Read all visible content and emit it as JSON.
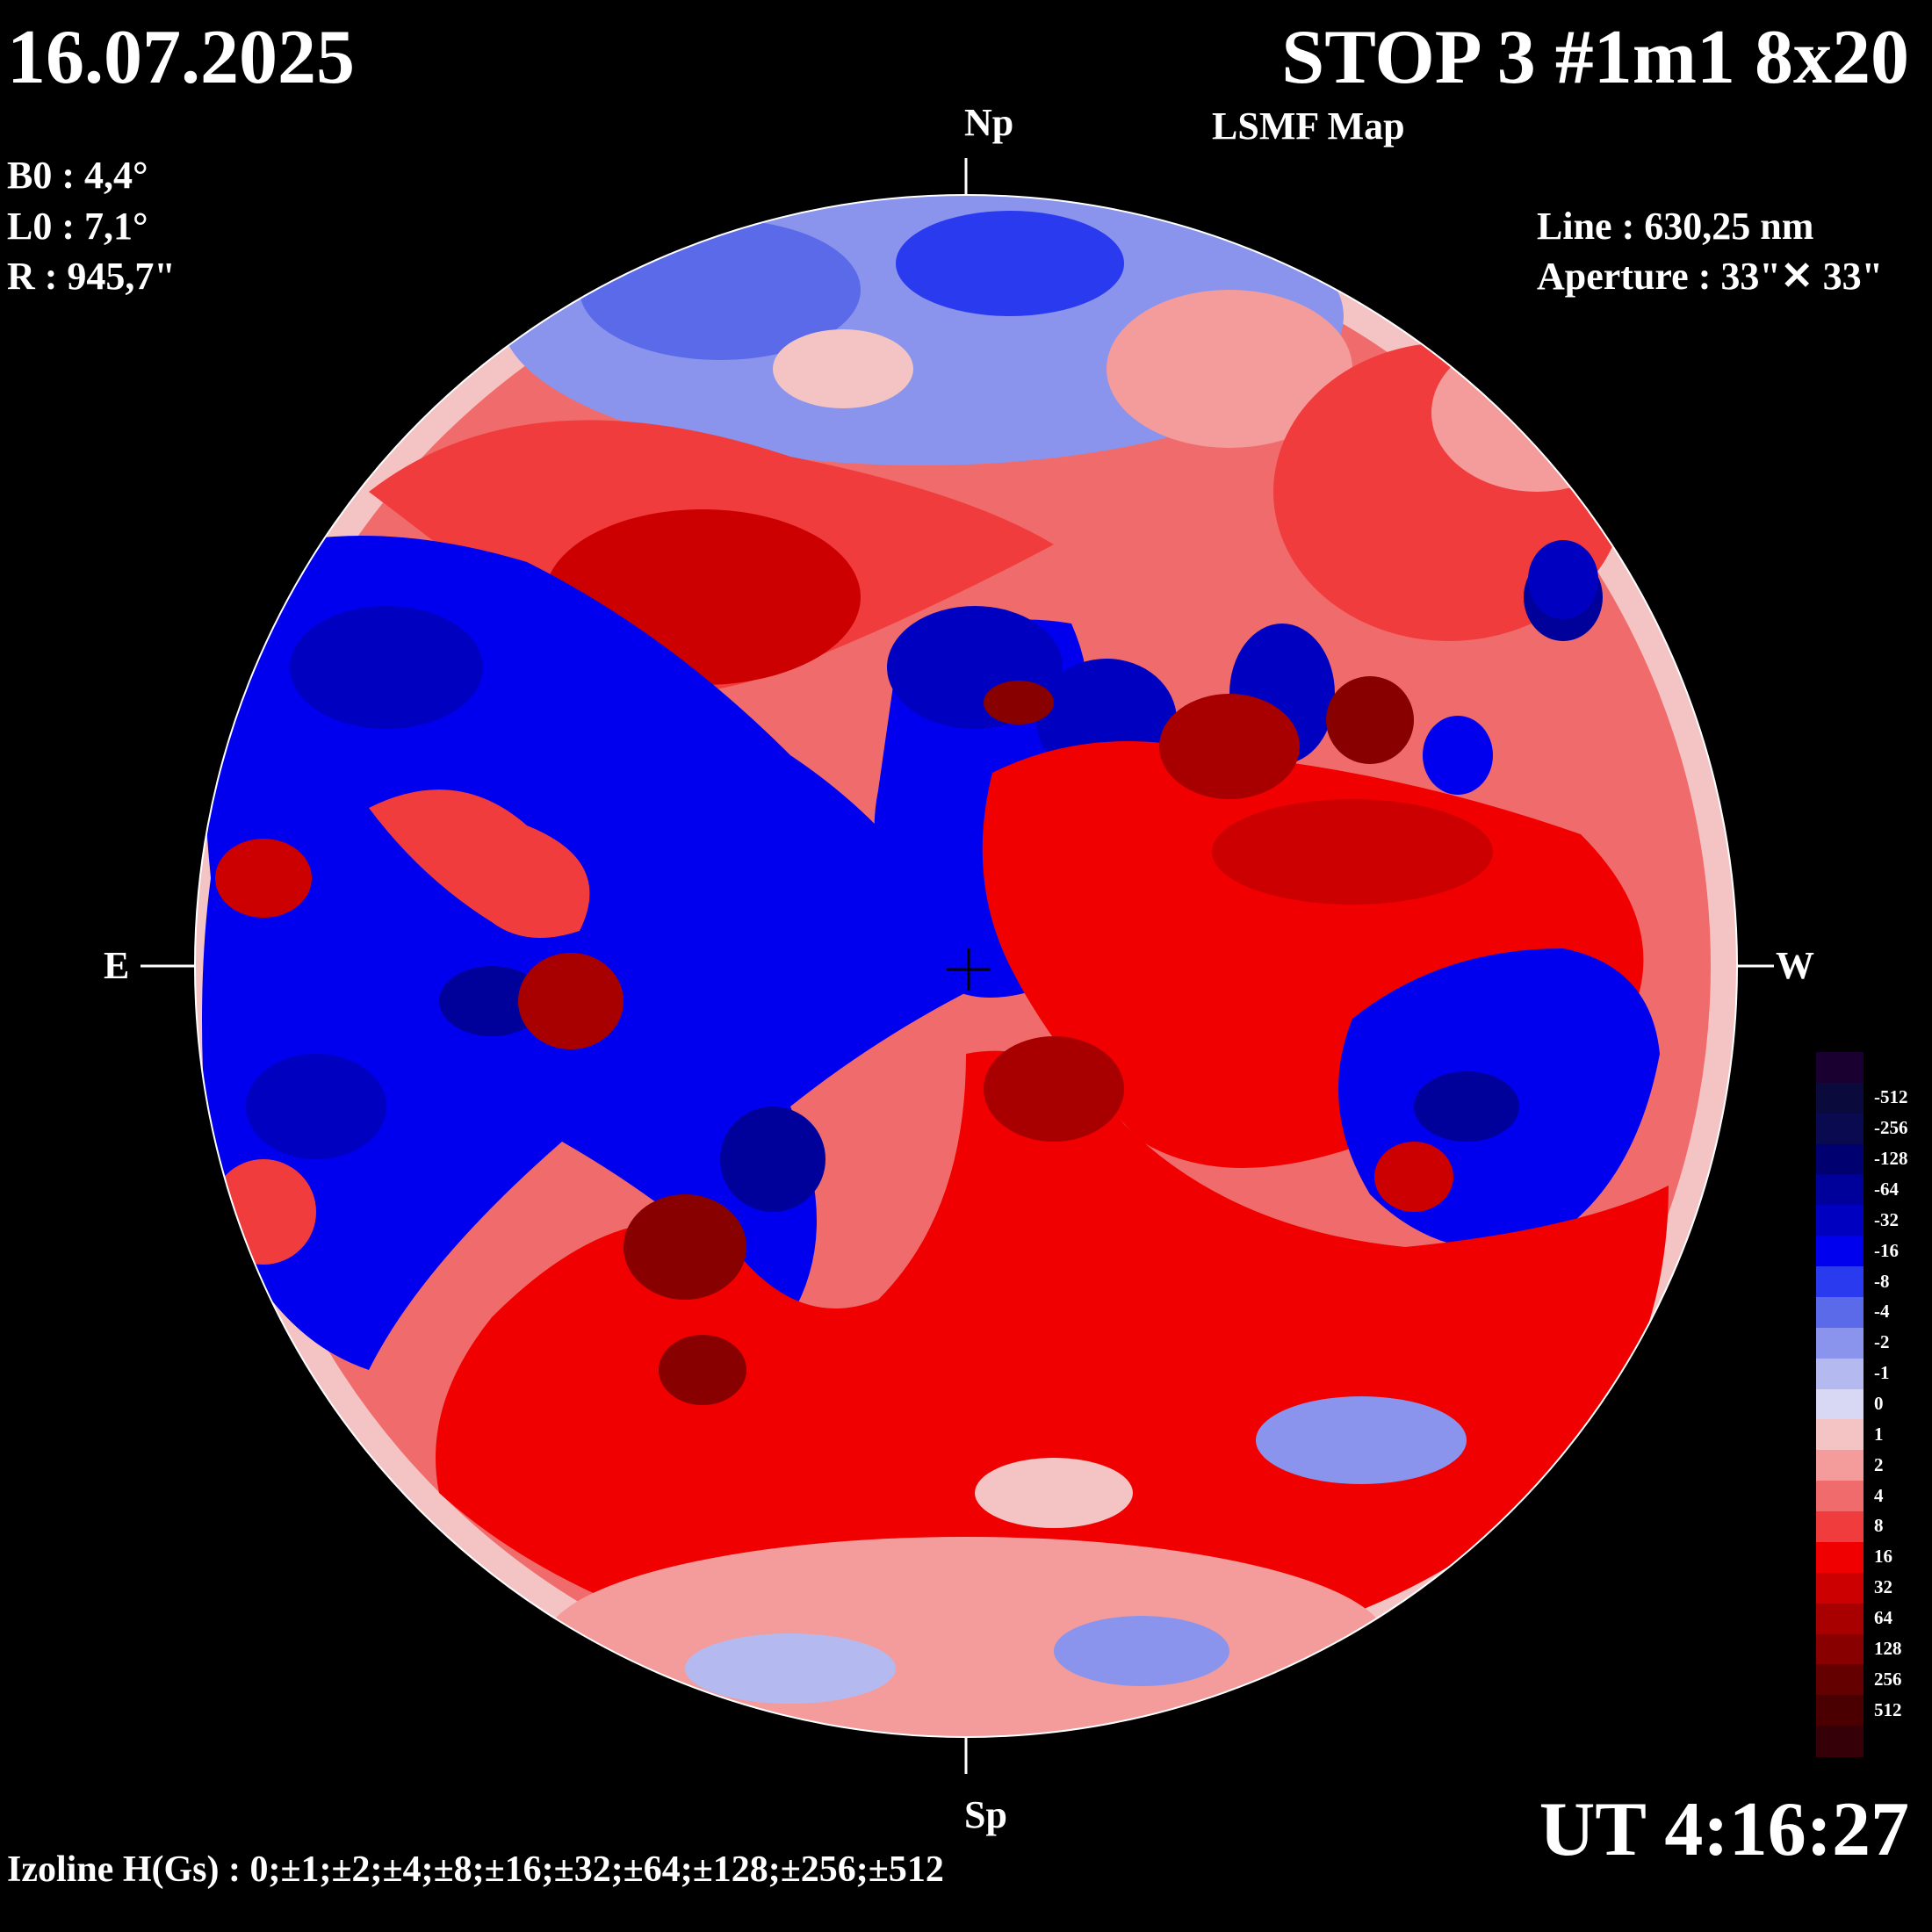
{
  "header": {
    "date": "16.07.2025",
    "title": "STOP 3 #1m1 8x20",
    "subtitle": "LSMF  Map"
  },
  "params": {
    "b0": "B0 : 4,4°",
    "l0": "L0 : 7,1°",
    "r": "R  : 945,7\""
  },
  "instrument": {
    "line": "Line :  630,25 nm",
    "aperture": "Aperture : 33\"✕ 33\""
  },
  "orientation": {
    "north": "Np",
    "south": "Sp",
    "east": "E",
    "west": "W"
  },
  "time": "UT 4:16:27",
  "izoline": "Izoline H(Gs) : 0;±1;±2;±4;±8;±16;±32;±64;±128;±256;±512",
  "legend": [
    {
      "label": "",
      "color": "#1a0030"
    },
    {
      "label": "-512",
      "color": "#0a0a3c"
    },
    {
      "label": "-256",
      "color": "#0a0a50"
    },
    {
      "label": "-128",
      "color": "#000070"
    },
    {
      "label": "-64",
      "color": "#00009a"
    },
    {
      "label": "-32",
      "color": "#0000c0"
    },
    {
      "label": "-16",
      "color": "#0000ee"
    },
    {
      "label": "-8",
      "color": "#2a3aee"
    },
    {
      "label": "-4",
      "color": "#5a6ae8"
    },
    {
      "label": "-2",
      "color": "#8a94ec"
    },
    {
      "label": "-1",
      "color": "#b4baf0"
    },
    {
      "label": "0",
      "color": "#d8d8f4"
    },
    {
      "label": "1",
      "color": "#f4c4c4"
    },
    {
      "label": "2",
      "color": "#f49c9c"
    },
    {
      "label": "4",
      "color": "#f06c6c"
    },
    {
      "label": "8",
      "color": "#f03c3c"
    },
    {
      "label": "16",
      "color": "#f00000"
    },
    {
      "label": "32",
      "color": "#cc0000"
    },
    {
      "label": "64",
      "color": "#a80000"
    },
    {
      "label": "128",
      "color": "#880000"
    },
    {
      "label": "256",
      "color": "#640000"
    },
    {
      "label": "512",
      "color": "#4a0000"
    },
    {
      "label": "",
      "color": "#360008"
    }
  ]
}
